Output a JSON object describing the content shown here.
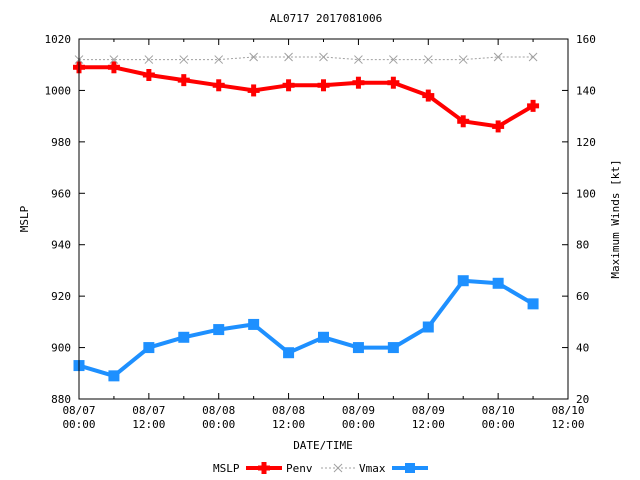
{
  "chart_data": {
    "type": "line",
    "title": "AL0717 2017081006",
    "xlabel": "DATE/TIME",
    "ylabel": "MSLP",
    "y2label": "Maximum Winds [kt]",
    "xlim_hours": [
      0,
      84
    ],
    "ylim": [
      880,
      1020
    ],
    "y2lim": [
      20,
      160
    ],
    "x_ticks": [
      {
        "hour": 0,
        "date": "08/07",
        "time": "00:00"
      },
      {
        "hour": 12,
        "date": "08/07",
        "time": "12:00"
      },
      {
        "hour": 24,
        "date": "08/08",
        "time": "00:00"
      },
      {
        "hour": 36,
        "date": "08/08",
        "time": "12:00"
      },
      {
        "hour": 48,
        "date": "08/09",
        "time": "00:00"
      },
      {
        "hour": 60,
        "date": "08/09",
        "time": "12:00"
      },
      {
        "hour": 72,
        "date": "08/10",
        "time": "00:00"
      },
      {
        "hour": 84,
        "date": "08/10",
        "time": "12:00"
      }
    ],
    "y_ticks": [
      880,
      900,
      920,
      940,
      960,
      980,
      1000,
      1020
    ],
    "y2_ticks": [
      20,
      40,
      60,
      80,
      100,
      120,
      140,
      160
    ],
    "x": [
      0,
      6,
      12,
      18,
      24,
      30,
      36,
      42,
      48,
      54,
      60,
      66,
      72,
      78
    ],
    "series": [
      {
        "name": "MSLP",
        "axis": "left",
        "color": "#ff0000",
        "values": [
          1009,
          1009,
          1006,
          1004,
          1002,
          1000,
          1002,
          1002,
          1003,
          1003,
          998,
          988,
          986,
          994
        ]
      },
      {
        "name": "Penv",
        "axis": "left",
        "color": "#a0a0a0",
        "values": [
          1012,
          1012,
          1012,
          1012,
          1012,
          1013,
          1013,
          1013,
          1012,
          1012,
          1012,
          1012,
          1013,
          1013
        ]
      },
      {
        "name": "Vmax",
        "axis": "right",
        "color": "#1e90ff",
        "values": [
          33,
          29,
          40,
          44,
          47,
          49,
          38,
          44,
          40,
          40,
          48,
          66,
          65,
          57
        ]
      }
    ],
    "legend_position": "bottom",
    "legend_labels": {
      "mslp": "MSLP",
      "penv": "Penv",
      "vmax": "Vmax"
    }
  }
}
